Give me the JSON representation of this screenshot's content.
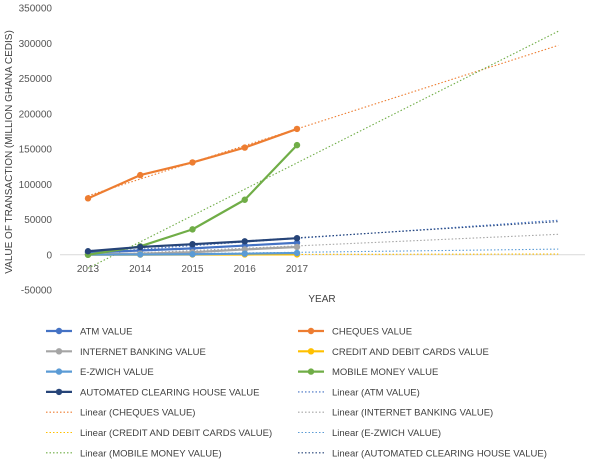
{
  "chart_data": {
    "type": "line",
    "title": "",
    "xlabel": "YEAR",
    "ylabel": "VALUE OF TRANSACTION  (MILLION GHANA CEDIS)",
    "categories": [
      "2013",
      "2014",
      "2015",
      "2016",
      "2017"
    ],
    "ylim": [
      -50000,
      350000
    ],
    "yticks": [
      -50000,
      0,
      50000,
      100000,
      150000,
      200000,
      250000,
      300000,
      350000
    ],
    "grid": false,
    "legend_position": "bottom",
    "series": [
      {
        "name": "ATM VALUE",
        "color": "#4472C4",
        "values": [
          3000,
          6000,
          9000,
          13000,
          17000
        ],
        "trend_name": "Linear (ATM VALUE)",
        "trend_end": 49000
      },
      {
        "name": "CHEQUES VALUE",
        "color": "#ED7D31",
        "values": [
          80000,
          113000,
          131000,
          152000,
          178500
        ],
        "trend_name": "Linear (CHEQUES VALUE)",
        "trend_end": 297000
      },
      {
        "name": "INTERNET BANKING VALUE",
        "color": "#A5A5A5",
        "values": [
          500,
          1500,
          3500,
          7500,
          11000
        ],
        "trend_name": "Linear (INTERNET BANKING VALUE)",
        "trend_end": 29000
      },
      {
        "name": "CREDIT AND DEBIT CARDS VALUE",
        "color": "#FFC000",
        "values": [
          100,
          200,
          300,
          400,
          500
        ],
        "trend_name": "Linear (CREDIT AND DEBIT CARDS VALUE)",
        "trend_end": 1000
      },
      {
        "name": "E-ZWICH VALUE",
        "color": "#5B9BD5",
        "values": [
          100,
          300,
          700,
          1500,
          2500
        ],
        "trend_name": "Linear (E-ZWICH VALUE)",
        "trend_end": 8000
      },
      {
        "name": "MOBILE MONEY VALUE",
        "color": "#70AD47",
        "values": [
          0,
          12000,
          36000,
          78000,
          155500
        ],
        "trend_name": "Linear (MOBILE MONEY VALUE)",
        "trend_end": 317000
      },
      {
        "name": "AUTOMATED CLEARING HOUSE VALUE",
        "color": "#264478",
        "values": [
          5000,
          11000,
          15000,
          19000,
          23500
        ],
        "trend_name": "Linear (AUTOMATED CLEARING HOUSE VALUE)",
        "trend_end": 47000
      }
    ]
  }
}
